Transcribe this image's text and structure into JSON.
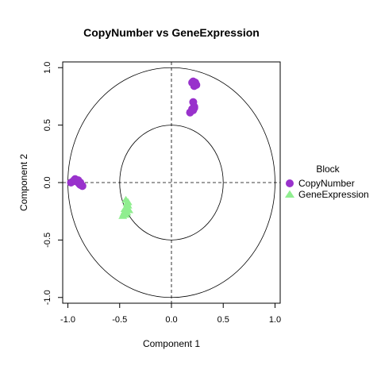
{
  "chart_data": {
    "type": "scatter",
    "title": "CopyNumber vs GeneExpression",
    "xlabel": "Component 1",
    "ylabel": "Component 2",
    "xlim": [
      -1.05,
      1.05
    ],
    "ylim": [
      -1.05,
      1.05
    ],
    "xticks": [
      -1.0,
      -0.5,
      0.0,
      0.5,
      1.0
    ],
    "yticks": [
      -1.0,
      -0.5,
      0.0,
      0.5,
      1.0
    ],
    "xtick_labels": [
      "-1.0",
      "-0.5",
      "0.0",
      "0.5",
      "1.0"
    ],
    "ytick_labels": [
      "-1.0",
      "-0.5",
      "0.0",
      "0.5",
      "1.0"
    ],
    "circles": [
      1.0,
      0.5
    ],
    "reference_lines": {
      "x": 0,
      "y": 0,
      "style": "dashed"
    },
    "grid": false,
    "legend": {
      "title": "Block",
      "position": "right"
    },
    "series": [
      {
        "name": "CopyNumber",
        "marker": "circle",
        "color": "#9932CC",
        "points": [
          [
            -0.97,
            0.0
          ],
          [
            -0.95,
            0.01
          ],
          [
            -0.94,
            0.02
          ],
          [
            -0.93,
            0.03
          ],
          [
            -0.92,
            0.02
          ],
          [
            -0.91,
            0.01
          ],
          [
            -0.9,
            0.0
          ],
          [
            -0.89,
            -0.01
          ],
          [
            -0.88,
            -0.02
          ],
          [
            -0.87,
            -0.02
          ],
          [
            -0.9,
            0.02
          ],
          [
            -0.86,
            -0.03
          ],
          [
            -0.88,
            0.0
          ],
          [
            0.21,
            0.88
          ],
          [
            0.22,
            0.86
          ],
          [
            0.23,
            0.87
          ],
          [
            0.2,
            0.87
          ],
          [
            0.24,
            0.85
          ],
          [
            0.22,
            0.84
          ],
          [
            0.21,
            0.7
          ],
          [
            0.22,
            0.66
          ],
          [
            0.2,
            0.64
          ],
          [
            0.21,
            0.63
          ],
          [
            0.18,
            0.61
          ],
          [
            0.22,
            0.65
          ]
        ]
      },
      {
        "name": "GeneExpression",
        "marker": "triangle",
        "color": "#90EE90",
        "points": [
          [
            -0.44,
            -0.15
          ],
          [
            -0.43,
            -0.18
          ],
          [
            -0.42,
            -0.2
          ],
          [
            -0.44,
            -0.22
          ],
          [
            -0.41,
            -0.24
          ],
          [
            -0.45,
            -0.25
          ],
          [
            -0.46,
            -0.27
          ],
          [
            -0.44,
            -0.28
          ],
          [
            -0.47,
            -0.29
          ],
          [
            -0.43,
            -0.26
          ],
          [
            -0.45,
            -0.23
          ],
          [
            -0.42,
            -0.17
          ]
        ]
      }
    ]
  }
}
